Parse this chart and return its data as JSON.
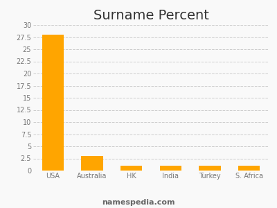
{
  "title": "Surname Percent",
  "categories": [
    "USA",
    "Australia",
    "HK",
    "India",
    "Turkey",
    "S. Africa"
  ],
  "values": [
    28.0,
    3.0,
    1.0,
    1.0,
    1.0,
    1.0
  ],
  "bar_color": "#FFA500",
  "ylim": [
    0,
    30
  ],
  "yticks": [
    0,
    2.5,
    5,
    7.5,
    10,
    12.5,
    15,
    17.5,
    20,
    22.5,
    25,
    27.5,
    30
  ],
  "ytick_labels": [
    "0",
    "2.5",
    "5",
    "7.5",
    "10",
    "12.5",
    "15",
    "17.5",
    "20",
    "22.5",
    "25",
    "27.5",
    "30"
  ],
  "grid_color": "#cccccc",
  "background_color": "#f9f9f9",
  "title_fontsize": 14,
  "tick_fontsize": 7,
  "footer_text": "namespedia.com",
  "footer_fontsize": 8,
  "footer_color": "#666666"
}
